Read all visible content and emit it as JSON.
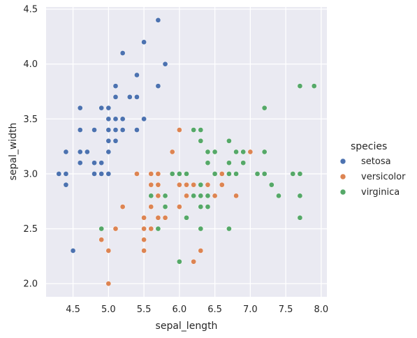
{
  "chart_data": {
    "type": "scatter",
    "xlabel": "sepal_length",
    "ylabel": "sepal_width",
    "xlim": [
      4.12,
      8.08
    ],
    "ylim": [
      1.88,
      4.52
    ],
    "xticks": [
      "4.5",
      "5.0",
      "5.5",
      "6.0",
      "6.5",
      "7.0",
      "7.5",
      "8.0"
    ],
    "yticks": [
      "2.0",
      "2.5",
      "3.0",
      "3.5",
      "4.0",
      "4.5"
    ],
    "grid": true,
    "legend": {
      "title": "species",
      "placement": "right"
    },
    "series": [
      {
        "name": "setosa",
        "color": "#4c72b0",
        "points": [
          [
            4.3,
            3.0
          ],
          [
            4.4,
            2.9
          ],
          [
            4.4,
            3.0
          ],
          [
            4.4,
            3.2
          ],
          [
            4.5,
            2.3
          ],
          [
            4.6,
            3.1
          ],
          [
            4.6,
            3.2
          ],
          [
            4.6,
            3.4
          ],
          [
            4.6,
            3.6
          ],
          [
            4.7,
            3.2
          ],
          [
            4.8,
            3.0
          ],
          [
            4.8,
            3.1
          ],
          [
            4.8,
            3.4
          ],
          [
            4.9,
            3.0
          ],
          [
            4.9,
            3.1
          ],
          [
            4.9,
            3.6
          ],
          [
            5.0,
            3.0
          ],
          [
            5.0,
            3.2
          ],
          [
            5.0,
            3.3
          ],
          [
            5.0,
            3.4
          ],
          [
            5.0,
            3.5
          ],
          [
            5.0,
            3.6
          ],
          [
            5.1,
            3.3
          ],
          [
            5.1,
            3.4
          ],
          [
            5.1,
            3.5
          ],
          [
            5.1,
            3.7
          ],
          [
            5.1,
            3.8
          ],
          [
            5.2,
            3.4
          ],
          [
            5.2,
            3.5
          ],
          [
            5.2,
            4.1
          ],
          [
            5.3,
            3.7
          ],
          [
            5.4,
            3.4
          ],
          [
            5.4,
            3.7
          ],
          [
            5.4,
            3.9
          ],
          [
            5.5,
            3.5
          ],
          [
            5.5,
            4.2
          ],
          [
            5.7,
            3.8
          ],
          [
            5.7,
            4.4
          ],
          [
            5.8,
            4.0
          ]
        ]
      },
      {
        "name": "versicolor",
        "color": "#dd8452",
        "points": [
          [
            4.9,
            2.4
          ],
          [
            5.0,
            2.0
          ],
          [
            5.0,
            2.3
          ],
          [
            5.1,
            2.5
          ],
          [
            5.2,
            2.7
          ],
          [
            5.4,
            3.0
          ],
          [
            5.5,
            2.3
          ],
          [
            5.5,
            2.4
          ],
          [
            5.5,
            2.5
          ],
          [
            5.5,
            2.6
          ],
          [
            5.6,
            2.5
          ],
          [
            5.6,
            2.7
          ],
          [
            5.6,
            2.9
          ],
          [
            5.6,
            3.0
          ],
          [
            5.7,
            2.6
          ],
          [
            5.7,
            2.8
          ],
          [
            5.7,
            2.9
          ],
          [
            5.7,
            3.0
          ],
          [
            5.8,
            2.6
          ],
          [
            5.8,
            2.7
          ],
          [
            5.9,
            3.0
          ],
          [
            5.9,
            3.2
          ],
          [
            6.0,
            2.2
          ],
          [
            6.0,
            2.7
          ],
          [
            6.0,
            2.9
          ],
          [
            6.0,
            3.4
          ],
          [
            6.1,
            2.8
          ],
          [
            6.1,
            2.9
          ],
          [
            6.1,
            3.0
          ],
          [
            6.2,
            2.2
          ],
          [
            6.2,
            2.9
          ],
          [
            6.3,
            2.3
          ],
          [
            6.3,
            2.5
          ],
          [
            6.3,
            3.3
          ],
          [
            6.4,
            2.9
          ],
          [
            6.4,
            3.2
          ],
          [
            6.5,
            2.8
          ],
          [
            6.6,
            2.9
          ],
          [
            6.6,
            3.0
          ],
          [
            6.7,
            3.0
          ],
          [
            6.7,
            3.1
          ],
          [
            6.8,
            2.8
          ],
          [
            6.9,
            3.1
          ],
          [
            7.0,
            3.2
          ]
        ]
      },
      {
        "name": "virginica",
        "color": "#55a868",
        "points": [
          [
            4.9,
            2.5
          ],
          [
            5.6,
            2.8
          ],
          [
            5.7,
            2.5
          ],
          [
            5.8,
            2.7
          ],
          [
            5.8,
            2.8
          ],
          [
            5.9,
            3.0
          ],
          [
            6.0,
            2.2
          ],
          [
            6.0,
            3.0
          ],
          [
            6.1,
            2.6
          ],
          [
            6.1,
            3.0
          ],
          [
            6.2,
            2.8
          ],
          [
            6.2,
            3.4
          ],
          [
            6.3,
            2.5
          ],
          [
            6.3,
            2.7
          ],
          [
            6.3,
            2.8
          ],
          [
            6.3,
            2.9
          ],
          [
            6.3,
            3.3
          ],
          [
            6.3,
            3.4
          ],
          [
            6.4,
            2.7
          ],
          [
            6.4,
            2.8
          ],
          [
            6.4,
            3.1
          ],
          [
            6.4,
            3.2
          ],
          [
            6.5,
            3.0
          ],
          [
            6.5,
            3.2
          ],
          [
            6.7,
            2.5
          ],
          [
            6.7,
            3.0
          ],
          [
            6.7,
            3.1
          ],
          [
            6.7,
            3.3
          ],
          [
            6.8,
            3.0
          ],
          [
            6.8,
            3.2
          ],
          [
            6.9,
            3.1
          ],
          [
            6.9,
            3.2
          ],
          [
            7.1,
            3.0
          ],
          [
            7.2,
            3.0
          ],
          [
            7.2,
            3.2
          ],
          [
            7.2,
            3.6
          ],
          [
            7.3,
            2.9
          ],
          [
            7.4,
            2.8
          ],
          [
            7.6,
            3.0
          ],
          [
            7.7,
            2.6
          ],
          [
            7.7,
            2.8
          ],
          [
            7.7,
            3.0
          ],
          [
            7.7,
            3.8
          ],
          [
            7.9,
            3.8
          ]
        ]
      }
    ]
  }
}
